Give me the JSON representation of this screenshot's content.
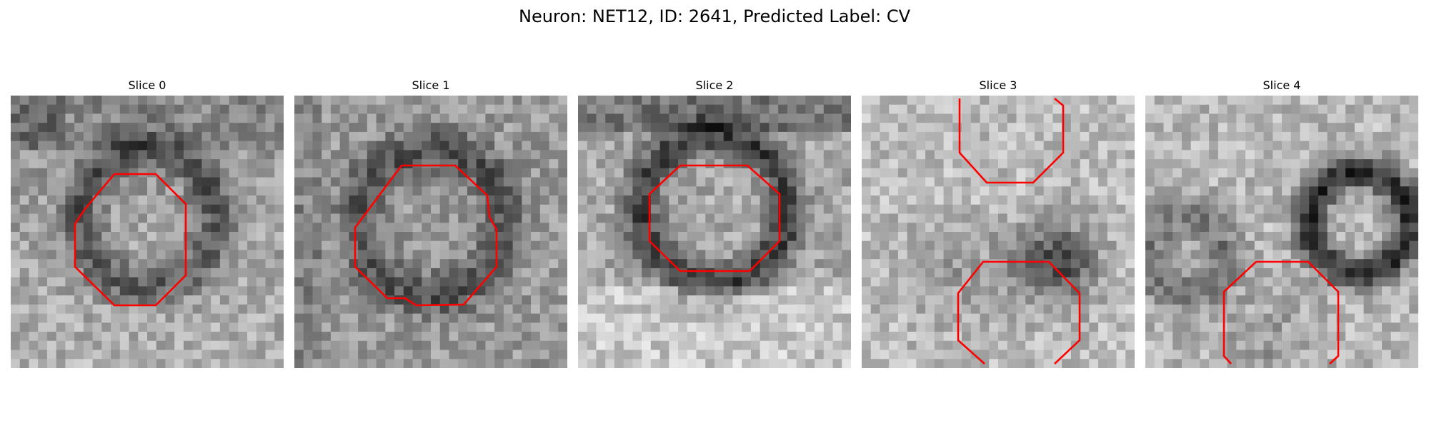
{
  "figure": {
    "title": "Neuron: NET12, ID: 2641, Predicted Label: CV",
    "contour_color": "#ff0000"
  },
  "panels": [
    {
      "title": "Slice 0"
    },
    {
      "title": "Slice 1"
    },
    {
      "title": "Slice 2"
    },
    {
      "title": "Slice 3"
    },
    {
      "title": "Slice 4"
    }
  ]
}
